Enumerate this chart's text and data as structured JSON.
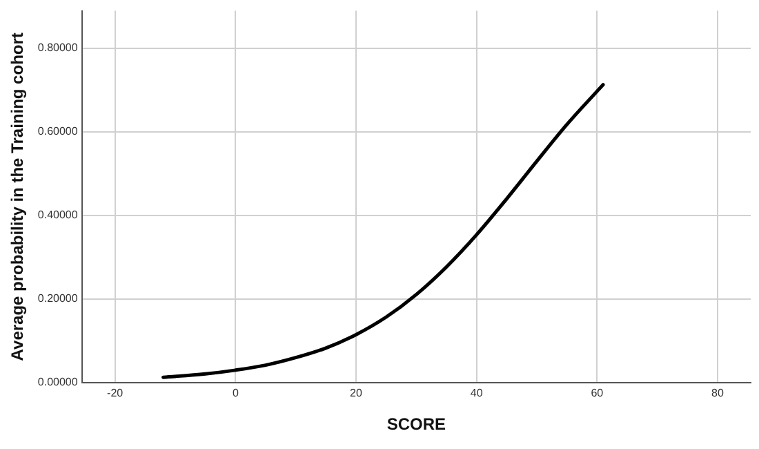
{
  "chart_data": {
    "type": "line",
    "xlabel": "SCORE",
    "ylabel": "Average probability in the Training cohort",
    "x": [
      -12,
      -5,
      0,
      5,
      10,
      15,
      20,
      25,
      30,
      35,
      40,
      45,
      50,
      55,
      61
    ],
    "series": [
      {
        "color": "#000000",
        "values": [
          0.013,
          0.021,
          0.03,
          0.042,
          0.06,
          0.083,
          0.115,
          0.157,
          0.211,
          0.277,
          0.354,
          0.44,
          0.53,
          0.618,
          0.713
        ]
      }
    ],
    "xlim": [
      -25.5,
      85.5
    ],
    "xticks": [
      -20,
      0,
      20,
      40,
      60,
      80
    ],
    "ylim": [
      0,
      0.89
    ],
    "yticks": [
      {
        "value": 0,
        "label": "0.00000"
      },
      {
        "value": 0.2,
        "label": "0.20000"
      },
      {
        "value": 0.4,
        "label": "0.40000"
      },
      {
        "value": 0.6,
        "label": "0.60000"
      },
      {
        "value": 0.8,
        "label": "0.80000"
      }
    ],
    "grid": true,
    "legend": false,
    "marker": "none",
    "line_style": "solid"
  }
}
